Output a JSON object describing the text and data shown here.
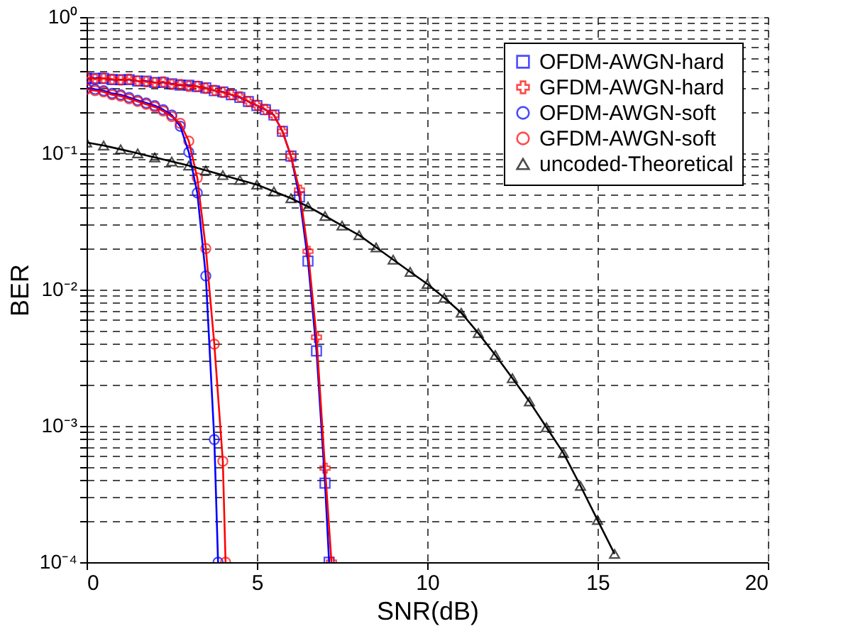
{
  "chart_data": {
    "type": "line",
    "xlabel": "SNR(dB)",
    "ylabel": "BER",
    "log": "y",
    "xlim": [
      0,
      20
    ],
    "xticks": [
      0,
      5,
      10,
      15,
      20
    ],
    "ylim": [
      0.0001,
      1
    ],
    "yticks": [
      {
        "value": 0.0001,
        "label": "10⁻⁴"
      },
      {
        "value": 0.0002,
        "label": null
      },
      {
        "value": 0.0003,
        "label": null
      },
      {
        "value": 0.0004,
        "label": null
      },
      {
        "value": 0.0005,
        "label": null
      },
      {
        "value": 0.0006,
        "label": null
      },
      {
        "value": 0.0007,
        "label": null
      },
      {
        "value": 0.0008,
        "label": null
      },
      {
        "value": 0.0009,
        "label": null
      },
      {
        "value": 0.001,
        "label": "10⁻³"
      },
      {
        "value": 0.002,
        "label": null
      },
      {
        "value": 0.003,
        "label": null
      },
      {
        "value": 0.004,
        "label": null
      },
      {
        "value": 0.005,
        "label": null
      },
      {
        "value": 0.006,
        "label": null
      },
      {
        "value": 0.007,
        "label": null
      },
      {
        "value": 0.008,
        "label": null
      },
      {
        "value": 0.009,
        "label": null
      },
      {
        "value": 0.01,
        "label": "10⁻²"
      },
      {
        "value": 0.02,
        "label": null
      },
      {
        "value": 0.03,
        "label": null
      },
      {
        "value": 0.04,
        "label": null
      },
      {
        "value": 0.05,
        "label": null
      },
      {
        "value": 0.06,
        "label": null
      },
      {
        "value": 0.07,
        "label": null
      },
      {
        "value": 0.08,
        "label": null
      },
      {
        "value": 0.09,
        "label": null
      },
      {
        "value": 0.1,
        "label": "10⁻¹"
      },
      {
        "value": 0.2,
        "label": null
      },
      {
        "value": 0.3,
        "label": null
      },
      {
        "value": 0.4,
        "label": null
      },
      {
        "value": 0.5,
        "label": null
      },
      {
        "value": 0.6,
        "label": null
      },
      {
        "value": 0.7,
        "label": null
      },
      {
        "value": 0.8,
        "label": null
      },
      {
        "value": 0.9,
        "label": null
      },
      {
        "value": 1,
        "label": "10⁰"
      }
    ],
    "grid": true,
    "legend": "top right",
    "line_style": "solid",
    "series": [
      {
        "name": "OFDM-AWGN-hard",
        "color": "#0000ff",
        "marker": "square",
        "x": [
          0,
          0.25,
          0.5,
          0.75,
          1,
          1.25,
          1.5,
          1.75,
          2,
          2.25,
          2.5,
          2.75,
          3,
          3.25,
          3.5,
          3.75,
          4,
          4.25,
          4.5,
          4.75,
          5,
          5.25,
          5.5,
          5.75,
          6,
          6.25,
          6.5,
          6.75,
          7,
          7.12
        ],
        "values": [
          0.355,
          0.355,
          0.355,
          0.347,
          0.347,
          0.347,
          0.339,
          0.339,
          0.331,
          0.331,
          0.324,
          0.316,
          0.316,
          0.309,
          0.302,
          0.288,
          0.282,
          0.269,
          0.257,
          0.24,
          0.224,
          0.209,
          0.191,
          0.145,
          0.0955,
          0.0479,
          0.0162,
          0.00355,
          0.00038,
          0.0001
        ]
      },
      {
        "name": "GFDM-AWGN-hard",
        "color": "#ff0000",
        "marker": "cross",
        "x": [
          0,
          0.25,
          0.5,
          0.75,
          1,
          1.25,
          1.5,
          1.75,
          2,
          2.25,
          2.5,
          2.75,
          3,
          3.25,
          3.5,
          3.75,
          4,
          4.25,
          4.5,
          4.75,
          5,
          5.25,
          5.5,
          5.75,
          6,
          6.25,
          6.5,
          6.75,
          7,
          7.19
        ],
        "values": [
          0.36,
          0.35,
          0.355,
          0.35,
          0.345,
          0.35,
          0.34,
          0.335,
          0.33,
          0.335,
          0.32,
          0.32,
          0.31,
          0.31,
          0.3,
          0.29,
          0.28,
          0.27,
          0.26,
          0.24,
          0.225,
          0.21,
          0.19,
          0.145,
          0.0955,
          0.0537,
          0.0191,
          0.00447,
          0.00049,
          0.0001
        ]
      },
      {
        "name": "OFDM-AWGN-soft",
        "color": "#0000ff",
        "marker": "circle",
        "x": [
          0,
          0.25,
          0.5,
          0.75,
          1,
          1.25,
          1.5,
          1.75,
          2,
          2.25,
          2.5,
          2.75,
          3,
          3.25,
          3.5,
          3.75,
          3.86
        ],
        "values": [
          0.302,
          0.295,
          0.288,
          0.275,
          0.269,
          0.257,
          0.245,
          0.234,
          0.224,
          0.209,
          0.191,
          0.158,
          0.102,
          0.0513,
          0.0126,
          0.000794,
          0.0001
        ]
      },
      {
        "name": "GFDM-AWGN-soft",
        "color": "#ff0000",
        "marker": "circle",
        "x": [
          0,
          0.25,
          0.5,
          0.75,
          1,
          1.25,
          1.5,
          1.75,
          2,
          2.25,
          2.5,
          2.75,
          3,
          3.25,
          3.5,
          3.75,
          4,
          4.08
        ],
        "values": [
          0.295,
          0.288,
          0.282,
          0.269,
          0.263,
          0.251,
          0.24,
          0.229,
          0.219,
          0.204,
          0.186,
          0.166,
          0.123,
          0.0661,
          0.02,
          0.00398,
          0.00055,
          0.0001
        ]
      },
      {
        "name": "uncoded-Theoretical",
        "color": "#000000",
        "marker": "triangle",
        "x": [
          0,
          0.5,
          1,
          1.5,
          2,
          2.5,
          3,
          3.5,
          4,
          4.5,
          5,
          5.5,
          6,
          6.5,
          7,
          7.5,
          8,
          8.5,
          9,
          9.5,
          10,
          10.5,
          11,
          11.5,
          12,
          12.5,
          13,
          13.5,
          14,
          14.5,
          15,
          15.5
        ],
        "values": [
          0.12,
          0.114,
          0.107,
          0.1,
          0.0933,
          0.0871,
          0.0813,
          0.075,
          0.0692,
          0.0638,
          0.0589,
          0.0525,
          0.0468,
          0.0407,
          0.0347,
          0.0295,
          0.0251,
          0.0204,
          0.0166,
          0.0135,
          0.011,
          0.00871,
          0.00676,
          0.00479,
          0.00331,
          0.00224,
          0.00151,
          0.000977,
          0.000631,
          0.000363,
          0.000204,
          0.000115
        ]
      }
    ]
  }
}
